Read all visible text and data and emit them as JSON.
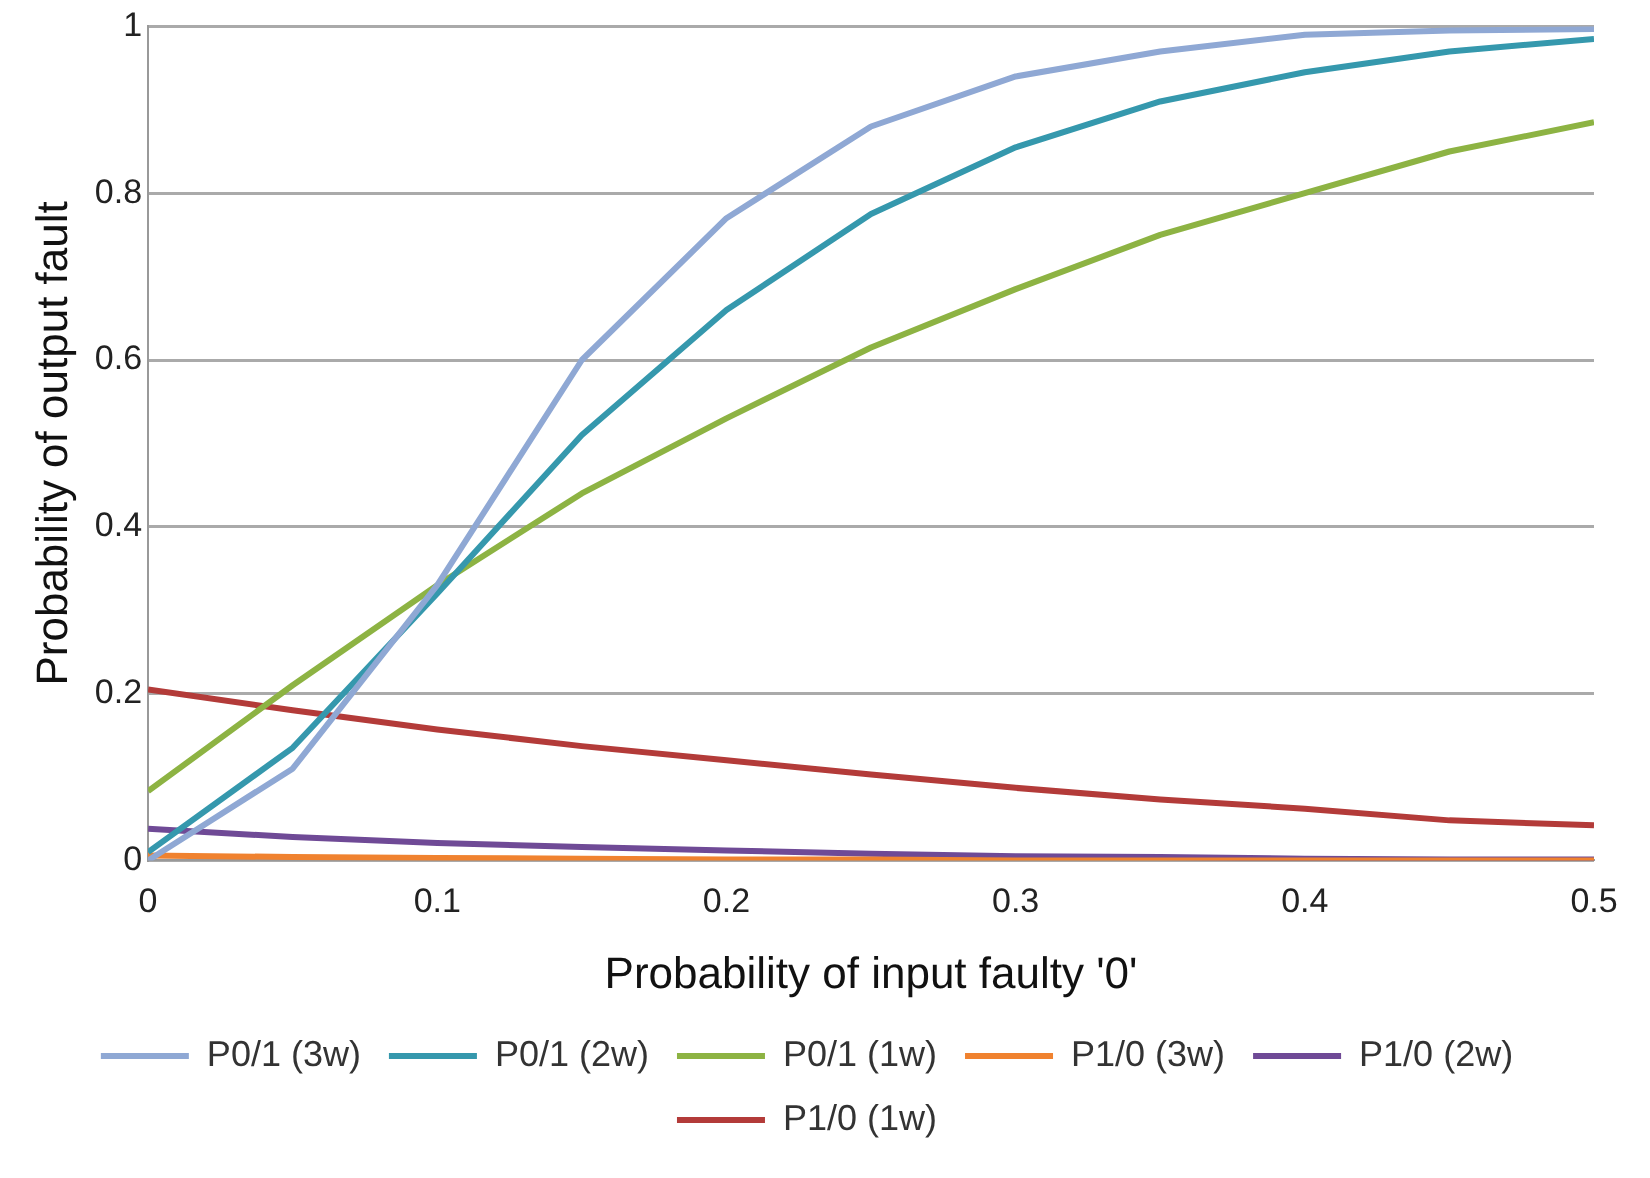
{
  "chart_data": {
    "type": "line",
    "xlabel": "Probability of input faulty '0'",
    "ylabel": "Probability of output fault",
    "x": [
      0,
      0.05,
      0.1,
      0.15,
      0.2,
      0.25,
      0.3,
      0.35,
      0.4,
      0.45,
      0.5
    ],
    "xlim": [
      0,
      0.5
    ],
    "xticks": [
      0,
      0.1,
      0.2,
      0.3,
      0.4,
      0.5
    ],
    "ylim": [
      0,
      1
    ],
    "yticks": [
      0,
      0.2,
      0.4,
      0.6,
      0.8,
      1
    ],
    "grid": "y",
    "legend": "bottom",
    "marker": "none",
    "line_style": "solid",
    "series": [
      {
        "name": "P0/1 (3w)",
        "color": "#8fa8d4",
        "values": [
          0.0,
          0.11,
          0.33,
          0.6,
          0.77,
          0.88,
          0.94,
          0.97,
          0.99,
          0.995,
          0.997
        ]
      },
      {
        "name": "P0/1 (2w)",
        "color": "#3598ad",
        "values": [
          0.01,
          0.135,
          0.32,
          0.51,
          0.66,
          0.775,
          0.855,
          0.91,
          0.945,
          0.97,
          0.985
        ]
      },
      {
        "name": "P0/1 (1w)",
        "color": "#8db343",
        "values": [
          0.083,
          0.21,
          0.33,
          0.44,
          0.53,
          0.615,
          0.685,
          0.75,
          0.8,
          0.85,
          0.885
        ]
      },
      {
        "name": "P1/0 (3w)",
        "color": "#f0822f",
        "values": [
          0.006,
          0.004,
          0.003,
          0.002,
          0.001,
          0.001,
          0,
          0,
          0,
          0,
          0
        ]
      },
      {
        "name": "P1/0 (2w)",
        "color": "#6f4a96",
        "values": [
          0.038,
          0.028,
          0.021,
          0.016,
          0.012,
          0.008,
          0.005,
          0.004,
          0.002,
          0.001,
          0.001
        ]
      },
      {
        "name": "P1/0 (1w)",
        "color": "#b33b39",
        "values": [
          0.205,
          0.18,
          0.157,
          0.137,
          0.12,
          0.103,
          0.087,
          0.073,
          0.062,
          0.048,
          0.042
        ]
      }
    ]
  }
}
